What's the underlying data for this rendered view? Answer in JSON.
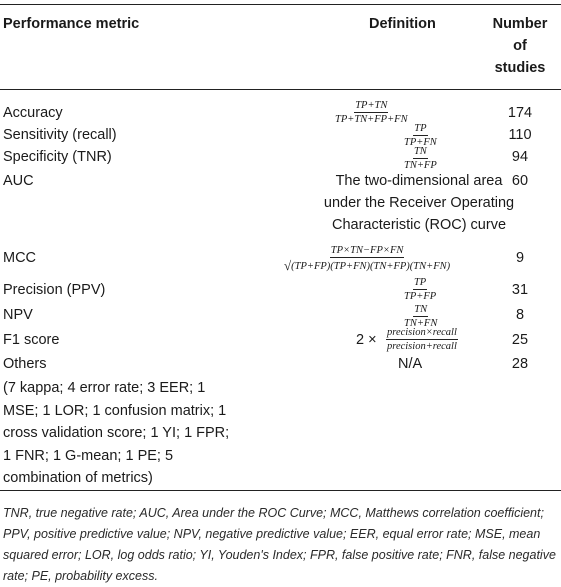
{
  "header": {
    "metric": "Performance metric",
    "definition": "Definition",
    "count_line1": "Number",
    "count_line2": "of",
    "count_line3": "studies"
  },
  "rows": [
    {
      "metric": "Accuracy",
      "num": "TP+TN",
      "den": "TP+TN+FP+FN",
      "count": "174"
    },
    {
      "metric": "Sensitivity (recall)",
      "num": "TP",
      "den": "TP+FN",
      "count": "110"
    },
    {
      "metric": "Specificity (TNR)",
      "num": "TN",
      "den": "TN+FP",
      "count": "94"
    },
    {
      "metric": "AUC",
      "definition": "The two-dimensional area under the Receiver Operating Characteristic (ROC) curve",
      "count": "60"
    },
    {
      "metric": "MCC",
      "num": "TP×TN−FP×FN",
      "sqrt": "√",
      "den": "(TP+FP)(TP+FN)(TN+FP)(TN+FN)",
      "count": "9"
    },
    {
      "metric": "Precision (PPV)",
      "num": "TP",
      "den": "TP+FP",
      "count": "31"
    },
    {
      "metric": "NPV",
      "num": "TN",
      "den": "TN+FN",
      "count": "8"
    },
    {
      "metric": "F1 score",
      "prefix": "2 ×",
      "num": "precision×recall",
      "den": "precision+recall",
      "count": "25"
    },
    {
      "metric": "Others",
      "detail": "(7 kappa; 4 error rate; 3 EER; 1 MSE; 1 LOR; 1 confusion matrix; 1 cross validation score; 1 YI; 1 FPR; 1 FNR; 1 G-mean; 1 PE; 5 combination of metrics)",
      "definition": "N/A",
      "count": "28"
    }
  ],
  "footnote": "TNR, true negative rate; AUC, Area under the ROC Curve; MCC, Matthews correlation coefficient; PPV, positive predictive value; NPV, negative predictive value; EER, equal error rate; MSE, mean squared error; LOR, log odds ratio; YI, Youden's Index; FPR, false positive rate; FNR, false negative rate; PE, probability excess."
}
